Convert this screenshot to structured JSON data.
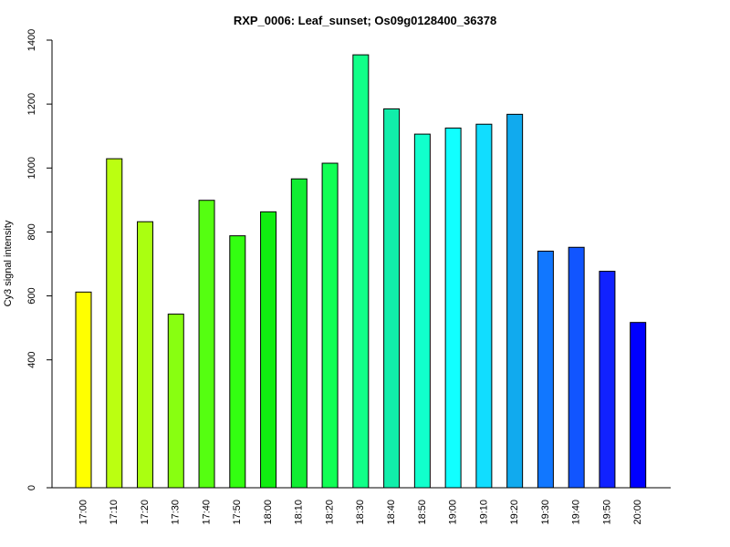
{
  "chart_data": {
    "type": "bar",
    "title": "RXP_0006: Leaf_sunset; Os09g0128400_36378",
    "xlabel": "",
    "ylabel": "Cy3 signal intensity",
    "categories": [
      "17:00",
      "17:10",
      "17:20",
      "17:30",
      "17:40",
      "17:50",
      "18:00",
      "18:10",
      "18:20",
      "18:30",
      "18:40",
      "18:50",
      "19:00",
      "19:10",
      "19:20",
      "19:30",
      "19:40",
      "19:50",
      "20:00"
    ],
    "values": [
      612,
      1029,
      832,
      543,
      899,
      788,
      863,
      966,
      1015,
      1354,
      1185,
      1106,
      1125,
      1137,
      1168,
      740,
      752,
      677,
      517
    ],
    "colors": [
      "#FFFF00",
      "#BBFF11",
      "#AAFF11",
      "#88FF11",
      "#55FF11",
      "#33FF11",
      "#11EE11",
      "#11EE33",
      "#11FF55",
      "#11FF88",
      "#11EEAA",
      "#11FFCC",
      "#11FFFF",
      "#11DDFF",
      "#11AAEE",
      "#1177FF",
      "#1155FF",
      "#1122FF",
      "#0000FF"
    ],
    "ylim": [
      0,
      1400
    ],
    "yticks": [
      0,
      400,
      600,
      800,
      1000,
      1200,
      1400
    ],
    "grid": false,
    "legend": "none"
  }
}
